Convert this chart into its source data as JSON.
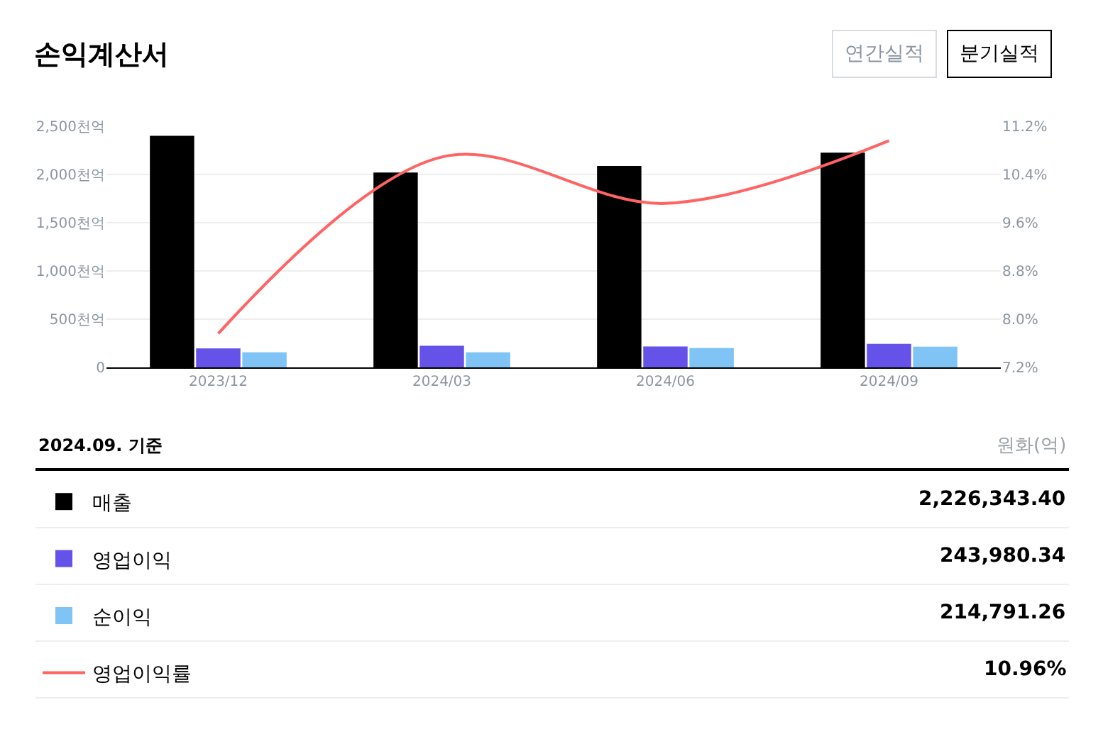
{
  "chart_data": {
    "type": "bar",
    "title": "손익계산서",
    "categories": [
      "2023/12",
      "2024/03",
      "2024/06",
      "2024/09"
    ],
    "series": [
      {
        "name": "매출",
        "color": "#000000",
        "values": [
          2400,
          2020,
          2088,
          2226
        ]
      },
      {
        "name": "영업이익",
        "color": "#6552e8",
        "values": [
          196,
          225,
          216,
          244
        ]
      },
      {
        "name": "순이익",
        "color": "#80c4f5",
        "values": [
          157,
          157,
          201,
          215
        ]
      },
      {
        "name": "영업이익률",
        "color": "#ff6363",
        "type": "line",
        "axis": "y2",
        "values": [
          7.76,
          10.69,
          9.92,
          10.96
        ]
      }
    ],
    "ylim": [
      0,
      2500
    ],
    "yticks": [
      0,
      {
        "value": 500,
        "label": "500천억"
      },
      {
        "value": 1000,
        "label": "1,000천억"
      },
      {
        "value": 1500,
        "label": "1,500천억"
      },
      {
        "value": 2000,
        "label": "2,000천억"
      },
      {
        "value": 2500,
        "label": "2,500천억"
      }
    ],
    "y2lim": [
      7.2,
      11.2
    ],
    "y2ticks": [
      {
        "value": 7.2,
        "label": "7.2%"
      },
      {
        "value": 8.0,
        "label": "8.0%"
      },
      {
        "value": 8.8,
        "label": "8.8%"
      },
      {
        "value": 9.6,
        "label": "9.6%"
      },
      {
        "value": 10.4,
        "label": "10.4%"
      },
      {
        "value": 11.2,
        "label": "11.2%"
      }
    ],
    "grid": "y",
    "legend": "bottom",
    "marker": "none",
    "annotations": [
      "연간실적",
      "분기실적",
      "2024.09. 기준",
      "원화(억)",
      "2,226,343.40",
      "243,980.34",
      "214,791.26",
      "10.96%"
    ]
  }
}
